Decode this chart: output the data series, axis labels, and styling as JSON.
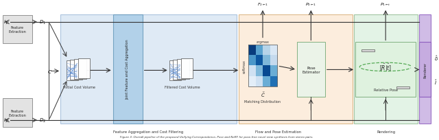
{
  "fig_width": 6.4,
  "fig_height": 2.05,
  "dpi": 100,
  "bg_color": "#ffffff",
  "I1_label": "$I_1$",
  "I2_label": "$I_2$",
  "D1_label": "$D_1$",
  "D2_label": "$D_2$",
  "C_label": "$C$",
  "F_label": "$F_{2\\leftarrow1}$",
  "P2_label": "$P_{2\\leftarrow1}$",
  "P1t_label": "$P_{1\\leftarrow t}$",
  "Ctilde_label": "$\\tilde{C}$",
  "Rt_label": "$[\\hat{R}|\\hat{t}]$",
  "delta_label": "$\\hat{\\delta}$",
  "I_hat_label": "$\\hat{I}$",
  "feature_extract_text": "Feature\nExtraction",
  "joint_text": "Joint Feature and Cost Aggregation",
  "icv_text": "Initial Cost Volume",
  "fcv_text": "Filtered Cost Volume",
  "argmax_text": "argmax",
  "softmax_text": "softmax",
  "matching_text": "Matching Distribution",
  "pose_est_text": "Pose\nEstimator",
  "rel_pose_text": "Relative Pose",
  "renderer_text": "Renderer",
  "sec1_text": "Feature Aggregation and Cost Filtering",
  "sec2_text": "Flow and Pose Estimation",
  "sec3_text": "Rendering",
  "caption_text": "Figure 3: Overall pipeline of the proposed Unifying Correspondence, Pose and NeRF for pose-free novel view synthesis from stereo pairs.",
  "col_blue_bg": "#cfe0f0",
  "col_orange_bg": "#fbe4cc",
  "col_green_bg": "#d4edda",
  "col_purple": "#c5abe0",
  "col_gray_box": "#e0e0e0",
  "col_arrow": "#333333",
  "col_blue_line": "#5b8dd4",
  "col_green_dashed": "#55aa55",
  "col_edge_blue": "#88aad0",
  "col_edge_orange": "#cc9955",
  "col_edge_green": "#77aa77",
  "col_edge_purple": "#8855bb"
}
